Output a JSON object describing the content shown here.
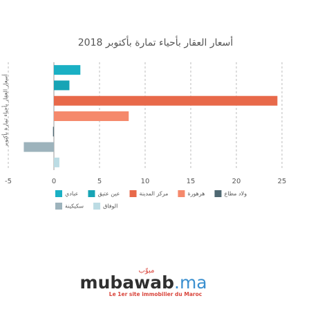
{
  "chart_data": {
    "type": "barh",
    "title": "أسعار العقار بأحياء تمارة بأكتوبر 2018",
    "y_label": "أسعار العقار بأحياء تمارة بأكتوبر",
    "series": [
      {
        "name": "عبادي",
        "color": "#1ab0c4",
        "values": [
          2.9
        ]
      },
      {
        "name": "عين عتيق",
        "color": "#17a4b5",
        "values": [
          1.7
        ]
      },
      {
        "name": "مركز المدينة",
        "color": "#e8694a",
        "values": [
          24.5
        ]
      },
      {
        "name": "هرهورة",
        "color": "#f5896c",
        "values": [
          8.2
        ]
      },
      {
        "name": "ولاد مطاع",
        "color": "#4f6872",
        "values": [
          -0.1
        ]
      },
      {
        "name": "سكيكينة",
        "color": "#9db3bc",
        "values": [
          -3.3
        ]
      },
      {
        "name": "الوفاق",
        "color": "#bcdce4",
        "values": [
          0.6
        ]
      }
    ],
    "xlim": [
      -5,
      25
    ],
    "xticks": [
      -5,
      0,
      5,
      10,
      15,
      20,
      25
    ],
    "grid": true
  },
  "logo": {
    "arabic": "مبوّب",
    "name": "mubawab",
    "suffix": ".ma",
    "tagline": "Le 1er site immobilier du Maroc"
  }
}
